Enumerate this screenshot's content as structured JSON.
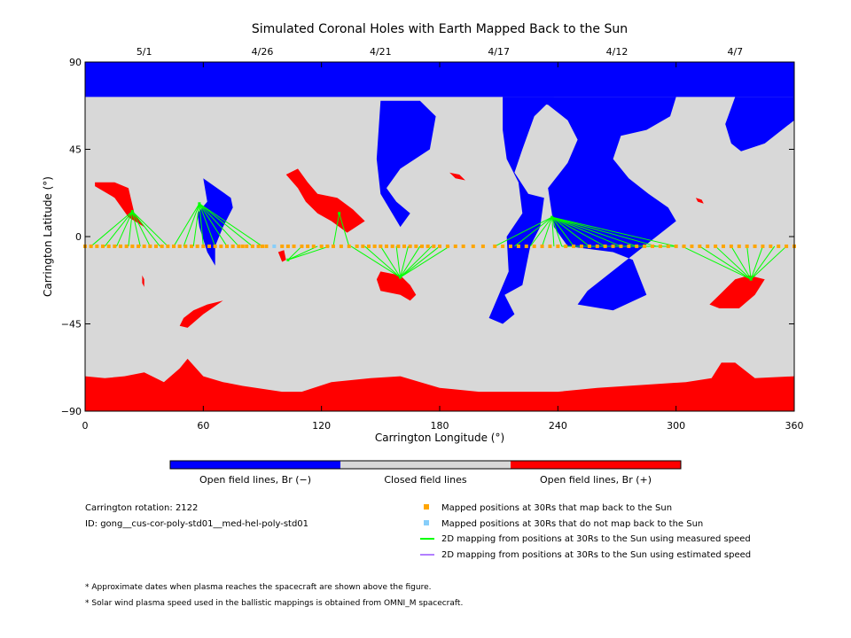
{
  "title": "Simulated Coronal Holes with Earth Mapped Back to the Sun",
  "chart_data": {
    "type": "map",
    "xlabel": "Carrington Longitude (°)",
    "ylabel": "Carrington Latitude (°)",
    "xlim": [
      0,
      360
    ],
    "ylim": [
      -90,
      90
    ],
    "x_ticks": [
      "0",
      "60",
      "120",
      "180",
      "240",
      "300",
      "360"
    ],
    "y_ticks": [
      "90",
      "45",
      "0",
      "−45",
      "−90"
    ],
    "top_dates": [
      {
        "label": "5/1",
        "lon": 30
      },
      {
        "label": "4/26",
        "lon": 90
      },
      {
        "label": "4/21",
        "lon": 150
      },
      {
        "label": "4/17",
        "lon": 210
      },
      {
        "label": "4/12",
        "lon": 270
      },
      {
        "label": "4/7",
        "lon": 330
      }
    ],
    "colors": {
      "open_neg": "#0000ff",
      "closed": "#d8d8d8",
      "open_pos": "#ff0000",
      "mapped": "#ffa500",
      "unmapped": "#87cefa",
      "measured": "#00ff00",
      "estimated": "#b27fff"
    },
    "colorbar_labels": [
      "Open field lines, Br (−)",
      "Closed field lines",
      "Open field lines, Br (+)"
    ],
    "coronal_holes_negative": [
      [
        [
          0,
          72
        ],
        [
          360,
          72
        ],
        [
          360,
          90
        ],
        [
          0,
          90
        ]
      ],
      [
        [
          150,
          70
        ],
        [
          170,
          70
        ],
        [
          178,
          62
        ],
        [
          175,
          45
        ],
        [
          160,
          35
        ],
        [
          153,
          25
        ],
        [
          158,
          18
        ],
        [
          165,
          12
        ],
        [
          160,
          5
        ],
        [
          150,
          22
        ],
        [
          148,
          40
        ]
      ],
      [
        [
          212,
          72
        ],
        [
          300,
          72
        ],
        [
          297,
          62
        ],
        [
          285,
          55
        ],
        [
          272,
          52
        ],
        [
          268,
          40
        ],
        [
          276,
          30
        ],
        [
          286,
          22
        ],
        [
          296,
          15
        ],
        [
          300,
          8
        ],
        [
          275,
          -12
        ],
        [
          255,
          -28
        ],
        [
          250,
          -35
        ],
        [
          268,
          -38
        ],
        [
          285,
          -30
        ],
        [
          278,
          -12
        ],
        [
          268,
          -8
        ],
        [
          245,
          -5
        ],
        [
          238,
          5
        ],
        [
          235,
          25
        ],
        [
          245,
          38
        ],
        [
          250,
          50
        ],
        [
          245,
          60
        ],
        [
          235,
          68
        ]
      ],
      [
        [
          212,
          72
        ],
        [
          238,
          72
        ],
        [
          228,
          62
        ],
        [
          222,
          45
        ],
        [
          218,
          33
        ],
        [
          225,
          22
        ],
        [
          233,
          20
        ],
        [
          231,
          5
        ],
        [
          226,
          -5
        ],
        [
          222,
          -25
        ],
        [
          213,
          -30
        ],
        [
          218,
          -40
        ],
        [
          212,
          -45
        ],
        [
          205,
          -42
        ],
        [
          210,
          -30
        ],
        [
          215,
          -18
        ],
        [
          214,
          0
        ],
        [
          222,
          12
        ],
        [
          220,
          28
        ],
        [
          214,
          40
        ],
        [
          212,
          55
        ]
      ],
      [
        [
          330,
          72
        ],
        [
          360,
          72
        ],
        [
          360,
          60
        ],
        [
          345,
          48
        ],
        [
          333,
          44
        ],
        [
          328,
          48
        ],
        [
          325,
          58
        ]
      ],
      [
        [
          60,
          30
        ],
        [
          67,
          25
        ],
        [
          74,
          20
        ],
        [
          75,
          15
        ],
        [
          70,
          5
        ],
        [
          66,
          -5
        ],
        [
          66,
          -15
        ],
        [
          62,
          -8
        ],
        [
          58,
          5
        ],
        [
          57,
          12
        ],
        [
          62,
          18
        ]
      ]
    ],
    "coronal_holes_positive": [
      [
        [
          0,
          -72
        ],
        [
          60,
          -72
        ],
        [
          52,
          -63
        ],
        [
          48,
          -68
        ],
        [
          40,
          -75
        ],
        [
          30,
          -70
        ],
        [
          20,
          -72
        ],
        [
          10,
          -73
        ],
        [
          0,
          -72
        ],
        [
          0,
          -90
        ],
        [
          360,
          -90
        ],
        [
          360,
          -72
        ],
        [
          340,
          -73
        ],
        [
          330,
          -65
        ],
        [
          323,
          -65
        ],
        [
          318,
          -73
        ],
        [
          305,
          -75
        ],
        [
          290,
          -76
        ],
        [
          260,
          -78
        ],
        [
          240,
          -80
        ],
        [
          220,
          -80
        ],
        [
          200,
          -80
        ],
        [
          180,
          -78
        ],
        [
          160,
          -72
        ],
        [
          145,
          -73
        ],
        [
          125,
          -75
        ],
        [
          110,
          -80
        ],
        [
          100,
          -80
        ],
        [
          80,
          -77
        ],
        [
          70,
          -75
        ],
        [
          60,
          -72
        ]
      ],
      [
        [
          5,
          28
        ],
        [
          15,
          28
        ],
        [
          22,
          25
        ],
        [
          25,
          12
        ],
        [
          30,
          5
        ],
        [
          22,
          10
        ],
        [
          15,
          20
        ],
        [
          5,
          26
        ]
      ],
      [
        [
          102,
          32
        ],
        [
          108,
          25
        ],
        [
          112,
          18
        ],
        [
          118,
          12
        ],
        [
          125,
          8
        ],
        [
          133,
          2
        ],
        [
          142,
          8
        ],
        [
          136,
          14
        ],
        [
          128,
          20
        ],
        [
          118,
          22
        ],
        [
          113,
          28
        ],
        [
          108,
          35
        ]
      ],
      [
        [
          150,
          -18
        ],
        [
          160,
          -20
        ],
        [
          165,
          -25
        ],
        [
          168,
          -30
        ],
        [
          165,
          -33
        ],
        [
          160,
          -30
        ],
        [
          150,
          -28
        ],
        [
          148,
          -22
        ]
      ],
      [
        [
          322,
          -30
        ],
        [
          330,
          -22
        ],
        [
          337,
          -20
        ],
        [
          345,
          -22
        ],
        [
          340,
          -30
        ],
        [
          332,
          -37
        ],
        [
          322,
          -37
        ],
        [
          317,
          -35
        ]
      ],
      [
        [
          50,
          -42
        ],
        [
          55,
          -38
        ],
        [
          62,
          -35
        ],
        [
          70,
          -33
        ],
        [
          60,
          -40
        ],
        [
          52,
          -47
        ],
        [
          48,
          -46
        ]
      ],
      [
        [
          185,
          33
        ],
        [
          190,
          32
        ],
        [
          193,
          29
        ],
        [
          188,
          30
        ]
      ],
      [
        [
          98,
          -8
        ],
        [
          101,
          -7
        ],
        [
          102,
          -12
        ],
        [
          100,
          -13
        ]
      ],
      [
        [
          29,
          -20
        ],
        [
          30,
          -22
        ],
        [
          30,
          -26
        ],
        [
          29,
          -24
        ]
      ],
      [
        [
          310,
          20
        ],
        [
          313,
          19
        ],
        [
          314,
          17
        ],
        [
          311,
          18
        ]
      ]
    ],
    "mapped_points": {
      "lat": -5,
      "lon": [
        0,
        3,
        6,
        9,
        12,
        15,
        18,
        21,
        24,
        27,
        30,
        33,
        36,
        39,
        42,
        45,
        48,
        51,
        54,
        57,
        60,
        63,
        66,
        69,
        72,
        75,
        78,
        80,
        82,
        85,
        88,
        90,
        92,
        100,
        103,
        106,
        110,
        113,
        116,
        120,
        123,
        126,
        130,
        134,
        138,
        141,
        144,
        147,
        150,
        153,
        156,
        159,
        162,
        165,
        168,
        171,
        174,
        177,
        180,
        184,
        188,
        192,
        197,
        202,
        208,
        212,
        216,
        220,
        224,
        228,
        232,
        236,
        240,
        244,
        248,
        252,
        256,
        260,
        264,
        268,
        272,
        276,
        280,
        284,
        288,
        292,
        296,
        300,
        304,
        308,
        312,
        316,
        320,
        324,
        328,
        332,
        336,
        340,
        344,
        348,
        352,
        356,
        360
      ]
    },
    "unmapped_points": [
      {
        "lon": 96,
        "lat": -5
      }
    ],
    "mapping_lines": [
      {
        "from": [
          24,
          13
        ],
        "to_lon": [
          3,
          10,
          16,
          22,
          28,
          33,
          38,
          42
        ]
      },
      {
        "from": [
          58,
          17
        ],
        "to_lon": [
          45,
          50,
          55,
          60,
          66,
          72,
          78,
          85,
          90
        ]
      },
      {
        "from": [
          103,
          -12
        ],
        "to_lon": [
          110,
          118,
          124
        ]
      },
      {
        "from": [
          129,
          12
        ],
        "to_lon": [
          126,
          134
        ]
      },
      {
        "from": [
          160,
          -21
        ],
        "to_lon": [
          135,
          142,
          150,
          158,
          164,
          170,
          176,
          180,
          185
        ]
      },
      {
        "from": [
          237,
          10
        ],
        "to_lon": [
          208,
          218,
          226,
          232,
          238,
          242,
          248,
          256,
          264,
          272,
          280,
          290,
          300
        ]
      },
      {
        "from": [
          300,
          -5
        ],
        "to_lon": [
          242
        ]
      },
      {
        "from": [
          338,
          -22
        ],
        "to_lon": [
          303,
          312,
          320,
          328,
          336,
          344,
          350,
          356
        ]
      }
    ],
    "mapping_points_extra": [
      [
        24,
        13
      ],
      [
        58,
        17
      ],
      [
        103,
        -12
      ],
      [
        129,
        12
      ],
      [
        160,
        -21
      ],
      [
        237,
        10
      ],
      [
        338,
        -22
      ]
    ]
  },
  "info": {
    "rotation": "Carrington rotation: 2122",
    "id": "ID: gong__cus-cor-poly-std01__med-hel-poly-std01"
  },
  "legend": [
    {
      "type": "square",
      "color": "#ffa500",
      "label": "Mapped positions at 30Rs that map back to the Sun"
    },
    {
      "type": "square",
      "color": "#87cefa",
      "label": "Mapped positions at 30Rs that do not map back to the Sun"
    },
    {
      "type": "line",
      "color": "#00ff00",
      "label": "2D mapping from positions at 30Rs to the Sun using measured speed"
    },
    {
      "type": "line",
      "color": "#b27fff",
      "label": "2D mapping from positions at 30Rs to the Sun using estimated speed"
    }
  ],
  "footnotes": [
    "* Approximate dates when plasma reaches the spacecraft are shown above the figure.",
    "* Solar wind plasma speed used in the ballistic mappings is obtained from OMNI_M spacecraft."
  ]
}
